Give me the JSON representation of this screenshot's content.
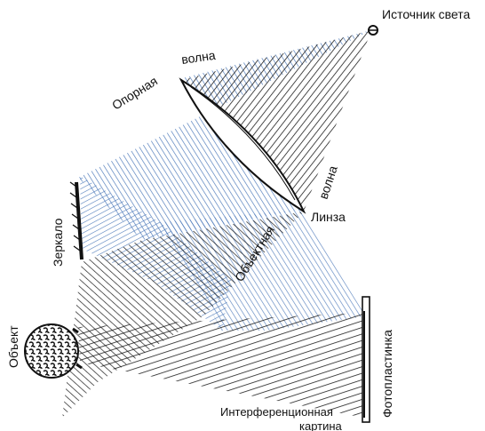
{
  "labels": {
    "source": "Источник света",
    "reference_wave_1": "Опорная",
    "reference_wave_2": "волна",
    "mirror": "Зеркало",
    "object": "Объект",
    "object_wave_1": "Объектная",
    "object_wave_2": "волна",
    "lens": "Линза",
    "plate": "Фотопластинка",
    "interference_1": "Интерференционная",
    "interference_2": "картина"
  },
  "colors": {
    "reference_beam": "#3f6fb4",
    "object_beam": "#111111",
    "line": "#111111"
  }
}
